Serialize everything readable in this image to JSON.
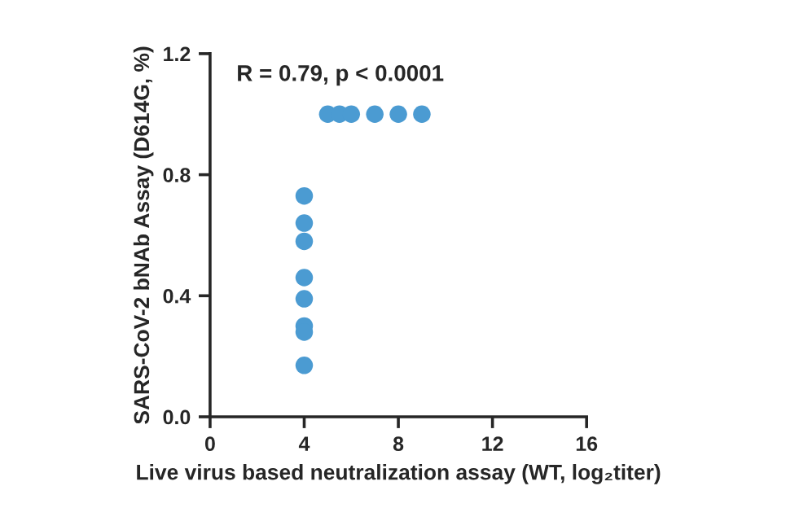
{
  "chart_data": {
    "type": "scatter",
    "xlabel": "Live virus based neutralization assay (WT, log₂titer)",
    "ylabel": "SARS-CoV-2 bNAb Assay (D614G, %)",
    "annotations": [
      "R = 0.79, p < 0.0001"
    ],
    "series": [
      {
        "color": "#4b9bd2",
        "x": [
          4,
          4,
          4,
          4,
          4,
          4,
          4,
          4,
          5,
          5.5,
          6,
          7,
          8,
          9
        ],
        "values": [
          0.73,
          0.64,
          0.58,
          0.46,
          0.39,
          0.3,
          0.28,
          0.17,
          1.0,
          1.0,
          1.0,
          1.0,
          1.0,
          1.0
        ]
      }
    ],
    "xlim": [
      0,
      16
    ],
    "xticks": [
      0,
      4,
      8,
      12,
      16
    ],
    "ylim": [
      0,
      1.2
    ],
    "yticks": [
      {
        "value": 0,
        "label": "0.0"
      },
      0.4,
      0.8,
      1.2
    ],
    "grid": false,
    "marker": "circle"
  }
}
